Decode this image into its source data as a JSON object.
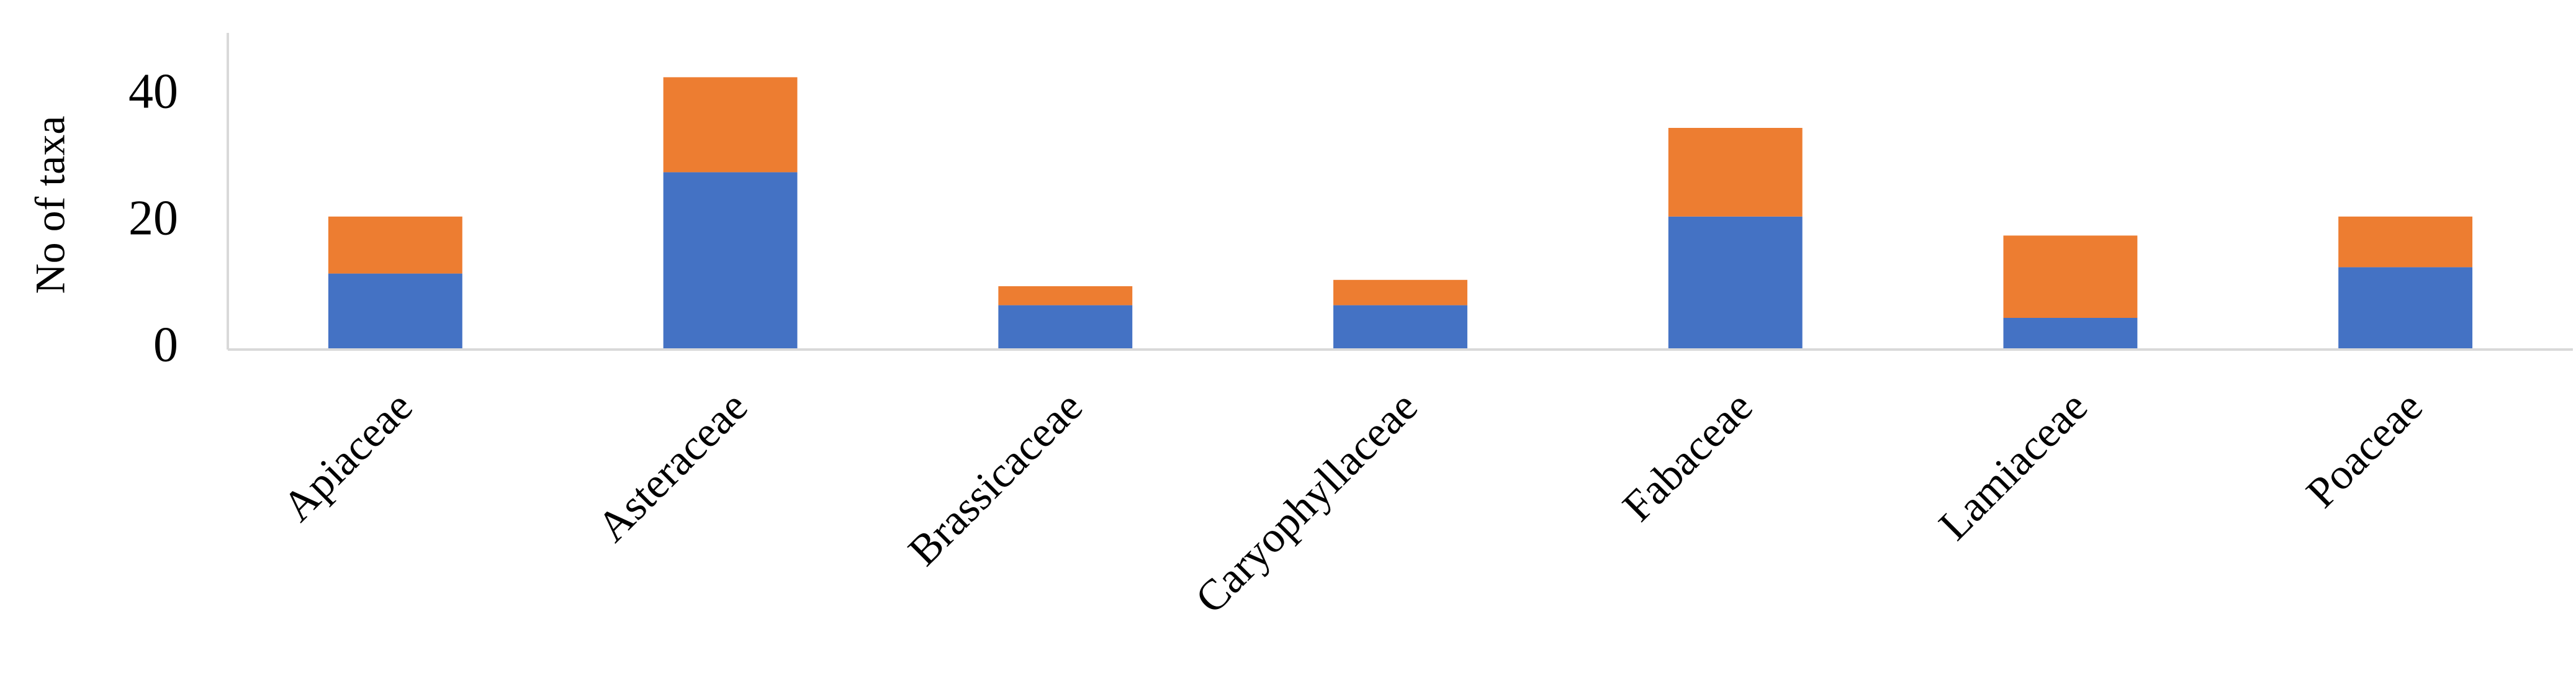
{
  "chart_data": {
    "type": "stacked-bar",
    "y_label": "No of taxa",
    "categories": [
      "Apiaceae",
      "Asteraceae",
      "Brassicaceae",
      "Caryophyllaceae",
      "Fabaceae",
      "Lamiaceae",
      "Poaceae"
    ],
    "series": [
      {
        "color": "#4472c4",
        "values": [
          12,
          28,
          7,
          7,
          21,
          5,
          13
        ]
      },
      {
        "color": "#ed7d31",
        "values": [
          9,
          15,
          3,
          4,
          14,
          13,
          8
        ]
      }
    ],
    "ylim": [
      0,
      50
    ],
    "yticks": [
      0,
      20,
      40
    ],
    "grid": false
  }
}
